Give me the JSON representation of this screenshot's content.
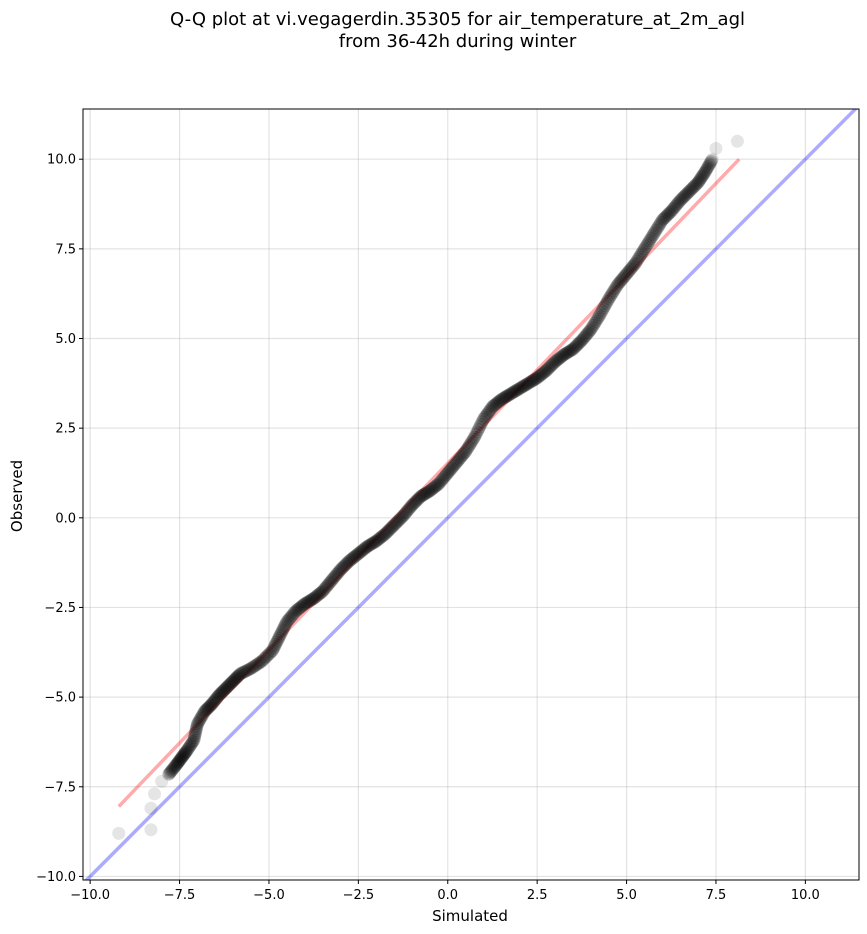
{
  "chart_data": {
    "type": "scatter",
    "title": "Q-Q plot at vi.vegagerdin.35305 for air_temperature_at_2m_agl",
    "subtitle": "from 36-42h during winter",
    "xlabel": "Simulated",
    "ylabel": "Observed",
    "xlim": [
      -10.2,
      11.5
    ],
    "ylim": [
      -10.1,
      11.4
    ],
    "xticks": [
      -10.0,
      -7.5,
      -5.0,
      -2.5,
      0.0,
      2.5,
      5.0,
      7.5,
      10.0
    ],
    "yticks": [
      -10.0,
      -7.5,
      -5.0,
      -2.5,
      0.0,
      2.5,
      5.0,
      7.5,
      10.0
    ],
    "xtick_labels": [
      "−10.0",
      "−7.5",
      "−5.0",
      "−2.5",
      "0.0",
      "2.5",
      "5.0",
      "7.5",
      "10.0"
    ],
    "ytick_labels": [
      "−10.0",
      "−7.5",
      "−5.0",
      "−2.5",
      "0.0",
      "2.5",
      "5.0",
      "7.5",
      "10.0"
    ],
    "grid": true,
    "quantile_curve": [
      [
        -9.2,
        -8.8
      ],
      [
        -8.3,
        -8.7
      ],
      [
        -8.3,
        -8.1
      ],
      [
        -8.2,
        -7.7
      ],
      [
        -8.0,
        -7.35
      ],
      [
        -7.8,
        -7.15
      ],
      [
        -7.6,
        -6.9
      ],
      [
        -7.45,
        -6.7
      ],
      [
        -7.3,
        -6.5
      ],
      [
        -7.1,
        -6.2
      ],
      [
        -7.0,
        -5.75
      ],
      [
        -6.8,
        -5.4
      ],
      [
        -6.6,
        -5.2
      ],
      [
        -6.4,
        -4.95
      ],
      [
        -6.2,
        -4.75
      ],
      [
        -6.0,
        -4.55
      ],
      [
        -5.8,
        -4.35
      ],
      [
        -5.5,
        -4.2
      ],
      [
        -5.2,
        -4.0
      ],
      [
        -4.9,
        -3.7
      ],
      [
        -4.7,
        -3.3
      ],
      [
        -4.5,
        -2.9
      ],
      [
        -4.25,
        -2.6
      ],
      [
        -4.0,
        -2.4
      ],
      [
        -3.75,
        -2.25
      ],
      [
        -3.5,
        -2.05
      ],
      [
        -3.25,
        -1.75
      ],
      [
        -3.0,
        -1.45
      ],
      [
        -2.75,
        -1.2
      ],
      [
        -2.5,
        -1.0
      ],
      [
        -2.25,
        -0.8
      ],
      [
        -2.0,
        -0.65
      ],
      [
        -1.75,
        -0.45
      ],
      [
        -1.5,
        -0.2
      ],
      [
        -1.25,
        0.05
      ],
      [
        -1.0,
        0.35
      ],
      [
        -0.75,
        0.6
      ],
      [
        -0.5,
        0.75
      ],
      [
        -0.25,
        0.95
      ],
      [
        0.0,
        1.25
      ],
      [
        0.25,
        1.55
      ],
      [
        0.5,
        1.85
      ],
      [
        0.75,
        2.25
      ],
      [
        1.0,
        2.75
      ],
      [
        1.25,
        3.1
      ],
      [
        1.5,
        3.3
      ],
      [
        1.75,
        3.45
      ],
      [
        2.0,
        3.6
      ],
      [
        2.25,
        3.75
      ],
      [
        2.5,
        3.9
      ],
      [
        2.75,
        4.1
      ],
      [
        3.0,
        4.35
      ],
      [
        3.25,
        4.55
      ],
      [
        3.5,
        4.7
      ],
      [
        3.75,
        4.95
      ],
      [
        4.0,
        5.25
      ],
      [
        4.25,
        5.65
      ],
      [
        4.5,
        6.1
      ],
      [
        4.75,
        6.5
      ],
      [
        5.0,
        6.8
      ],
      [
        5.25,
        7.1
      ],
      [
        5.5,
        7.5
      ],
      [
        5.75,
        7.9
      ],
      [
        6.0,
        8.3
      ],
      [
        6.25,
        8.55
      ],
      [
        6.5,
        8.85
      ],
      [
        6.75,
        9.1
      ],
      [
        7.0,
        9.35
      ],
      [
        7.2,
        9.65
      ],
      [
        7.4,
        10.0
      ],
      [
        7.5,
        10.3
      ],
      [
        8.1,
        10.5
      ]
    ],
    "fit_line": {
      "x": [
        -9.2,
        8.15
      ],
      "y": [
        -8.05,
        10.0
      ],
      "color": "#ff0000"
    },
    "identity_line": {
      "color": "#0000ff"
    },
    "marker_color": "#000000",
    "grid_color": "#b0b0b0"
  }
}
